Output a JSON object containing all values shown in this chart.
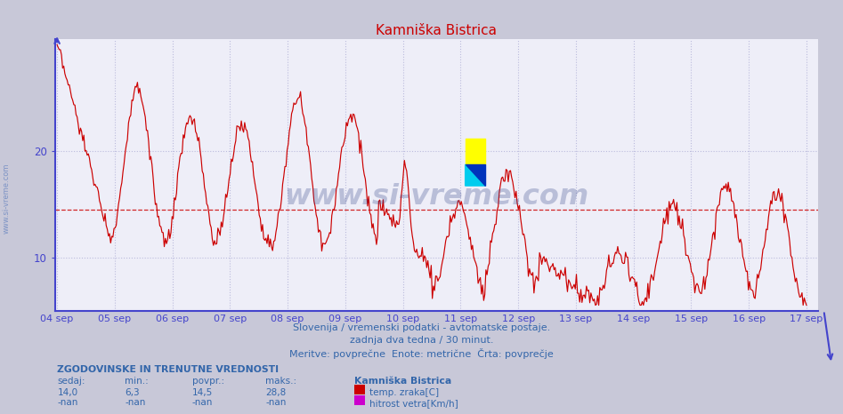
{
  "title": "Kamniška Bistrica",
  "title_color": "#cc0000",
  "outer_bg": "#c8c8d8",
  "plot_bg_color": "#eeeef8",
  "axis_color": "#4444cc",
  "line_color": "#cc0000",
  "avg_value": 14.5,
  "ymin": 5.0,
  "ymax": 30.5,
  "yticks": [
    10,
    20
  ],
  "xtick_labels": [
    "04 sep",
    "05 sep",
    "06 sep",
    "07 sep",
    "08 sep",
    "09 sep",
    "10 sep",
    "11 sep",
    "12 sep",
    "13 sep",
    "14 sep",
    "15 sep",
    "16 sep",
    "17 sep"
  ],
  "grid_color": "#bbbbdd",
  "text_color": "#3366aa",
  "subtitle1": "Slovenija / vremenski podatki - avtomatske postaje.",
  "subtitle2": "zadnja dva tedna / 30 minut.",
  "subtitle3": "Meritve: povprečne  Enote: metrične  Črta: povprečje",
  "footer_header": "ZGODOVINSKE IN TRENUTNE VREDNOSTI",
  "col_headers": [
    "sedaj:",
    "min.:",
    "povpr.:",
    "maks.:"
  ],
  "col_vals1": [
    "14,0",
    "6,3",
    "14,5",
    "28,8"
  ],
  "col_vals2": [
    "-nan",
    "-nan",
    "-nan",
    "-nan"
  ],
  "legend_station": "Kamniška Bistrica",
  "legend_temp": "temp. zraka[C]",
  "legend_wind": "hitrost vetra[Km/h]",
  "temp_swatch_color": "#cc0000",
  "wind_swatch_color": "#cc00cc",
  "watermark_text": "www.si-vreme.com",
  "watermark_color": "#334488",
  "side_text": "www.si-vreme.com"
}
